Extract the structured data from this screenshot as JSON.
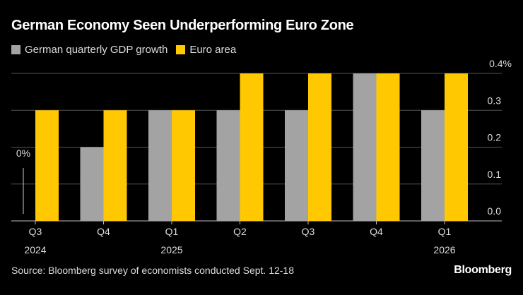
{
  "header": {
    "title": "German Economy Seen Underperforming Euro Zone"
  },
  "footer": {
    "source": "Source: Bloomberg survey of economists conducted Sept. 12-18",
    "logo": "Bloomberg"
  },
  "chart_data": {
    "type": "bar",
    "title": "German Economy Seen Underperforming Euro Zone",
    "categories": [
      "Q3 2024",
      "Q4",
      "Q1 2025",
      "Q2",
      "Q3",
      "Q4",
      "Q1 2026"
    ],
    "category_labels": [
      [
        "Q3",
        "2024"
      ],
      [
        "Q4",
        ""
      ],
      [
        "Q1",
        "2025"
      ],
      [
        "Q2",
        ""
      ],
      [
        "Q3",
        ""
      ],
      [
        "Q4",
        ""
      ],
      [
        "Q1",
        "2026"
      ]
    ],
    "series": [
      {
        "name": "German quarterly GDP growth",
        "color": "#a3a3a3",
        "values": [
          0,
          0.2,
          0.3,
          0.3,
          0.3,
          0.4,
          0.3
        ]
      },
      {
        "name": "Euro area",
        "color": "#ffc800",
        "values": [
          0.3,
          0.3,
          0.3,
          0.4,
          0.4,
          0.4,
          0.4
        ]
      }
    ],
    "yticks": [
      0.0,
      0.1,
      0.2,
      0.3,
      0.4
    ],
    "ytick_labels": [
      "0.0",
      "0.1",
      "0.2",
      "0.3",
      "0.4%"
    ],
    "ylim": [
      0,
      0.4
    ],
    "y_axis_side": "right",
    "grid": true,
    "legend": "top-left",
    "annotations": [
      {
        "text": "0%",
        "category": "Q3 2024",
        "series": "German quarterly GDP growth"
      }
    ]
  }
}
